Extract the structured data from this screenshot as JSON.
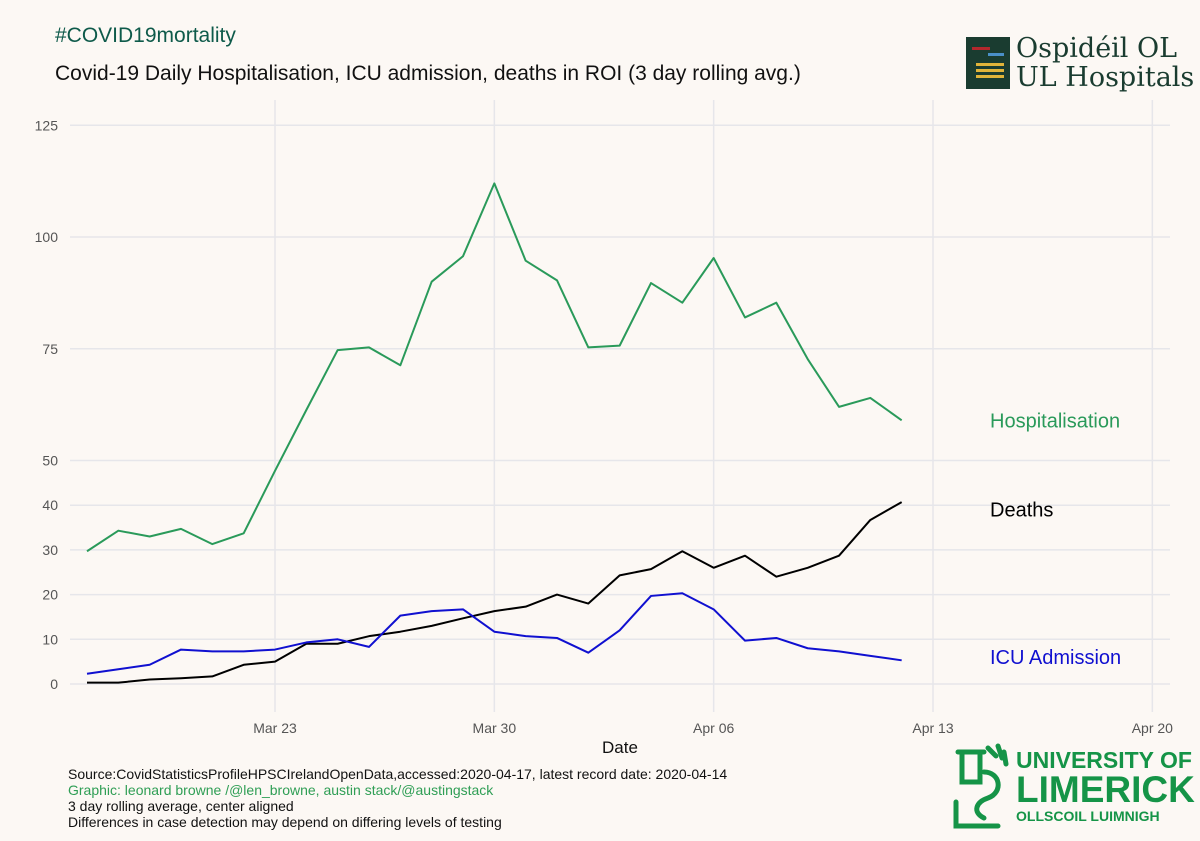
{
  "header": {
    "hashtag": "#COVID19mortality",
    "title": "Covid-19 Daily Hospitalisation, ICU admission, deaths in ROI (3 day rolling avg.)"
  },
  "logo_top": {
    "line1": "Ospidéil OL",
    "line2": "UL Hospitals"
  },
  "logo_bottom": {
    "line1": "UNIVERSITY OF",
    "line2": "LIMERICK",
    "line3": "OLLSCOIL LUIMNIGH"
  },
  "footer": {
    "source": "Source:CovidStatisticsProfileHPSCIrelandOpenData,accessed:2020-04-17, latest record date: 2020-04-14",
    "graphic": "Graphic: leonard browne /@len_browne, austin stack/@austingstack",
    "note1": "3 day rolling average, center aligned",
    "note2": "Differences in case detection may depend on differing levels of testing"
  },
  "colors": {
    "hospitalisation": "#2a9a5a",
    "deaths": "#000000",
    "icu": "#1010d0",
    "grid": "#e6e6ea",
    "background": "#fcf8f4"
  },
  "chart_data": {
    "type": "line",
    "xlabel": "Date",
    "ylabel": "",
    "x_ticks": [
      "Mar 23",
      "Mar 30",
      "Apr 06",
      "Apr 13",
      "Apr 20"
    ],
    "x_tick_days": [
      7,
      14,
      21,
      28,
      35
    ],
    "y_ticks": [
      0,
      10,
      20,
      30,
      40,
      50,
      75,
      100,
      125
    ],
    "grid": true,
    "legend": "direct labels at right",
    "x_range_days": [
      -1.5,
      35.5
    ],
    "start_date": "Mar 17",
    "series": [
      {
        "name": "Hospitalisation",
        "key": "hospitalisation",
        "values": [
          29.7,
          34.3,
          33.0,
          34.7,
          31.3,
          33.7,
          47.7,
          61.3,
          74.7,
          75.3,
          71.3,
          90.0,
          95.7,
          112.0,
          94.7,
          90.3,
          75.3,
          75.7,
          89.7,
          85.3,
          95.3,
          82.0,
          85.3,
          72.7,
          62.0,
          64.0,
          59.0
        ]
      },
      {
        "name": "Deaths",
        "key": "deaths",
        "values": [
          0.3,
          0.3,
          1.0,
          1.3,
          1.7,
          4.3,
          5.0,
          9.0,
          9.0,
          10.7,
          11.7,
          13.0,
          14.7,
          16.3,
          17.3,
          20.0,
          18.0,
          24.3,
          25.7,
          29.7,
          26.0,
          28.7,
          24.0,
          26.0,
          28.7,
          36.7,
          40.7
        ]
      },
      {
        "name": "ICU Admission",
        "key": "icu",
        "values": [
          2.3,
          3.3,
          4.3,
          7.7,
          7.3,
          7.3,
          7.7,
          9.3,
          10.0,
          8.3,
          15.3,
          16.3,
          16.7,
          11.7,
          10.7,
          10.3,
          7.0,
          12.0,
          19.7,
          20.3,
          16.7,
          9.7,
          10.3,
          8.0,
          7.3,
          6.3,
          5.3
        ]
      }
    ]
  }
}
